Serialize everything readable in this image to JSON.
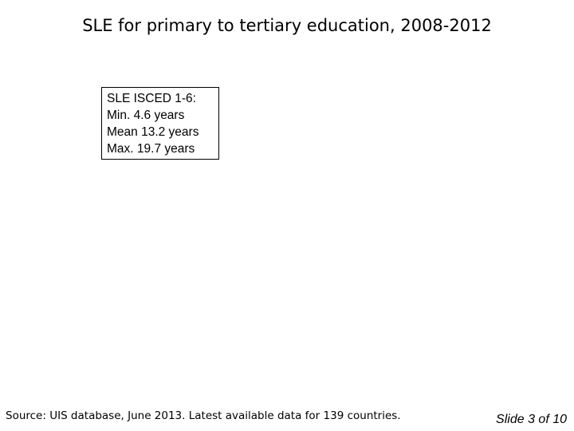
{
  "slide": {
    "title": "SLE for primary to tertiary education, 2008-2012",
    "stats_box": {
      "lines": [
        "SLE ISCED 1-6:",
        "Min. 4.6 years",
        "Mean 13.2 years",
        "Max. 19.7 years"
      ]
    },
    "source": "Source: UIS database, June 2013. Latest available data for 139 countries.",
    "slide_number": "Slide 3 of 10"
  }
}
